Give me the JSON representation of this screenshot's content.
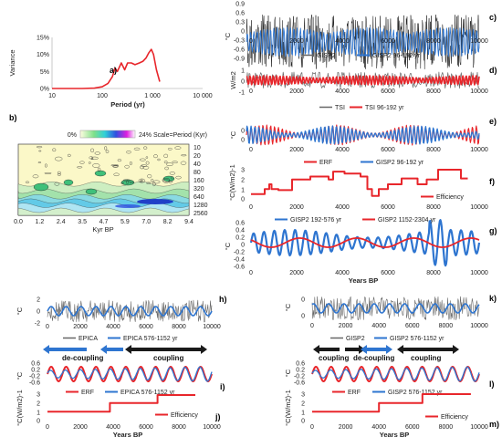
{
  "colors": {
    "black": "#1a1a1a",
    "gray": "#666666",
    "blue": "#2e75d0",
    "red": "#e8262b"
  },
  "chart_data": [
    {
      "id": "a",
      "type": "line",
      "panel_label": "a)",
      "ylabel": "Variance",
      "xlabel": "Period (yr)",
      "xscale": "log",
      "xticks": [
        "10",
        "100",
        "1 000",
        "10 000"
      ],
      "yticks": [
        "0%",
        "5%",
        "10%",
        "15%"
      ],
      "x": [
        10,
        40,
        70,
        100,
        130,
        160,
        180,
        200,
        240,
        280,
        320,
        380,
        450,
        550,
        650,
        750,
        850,
        950,
        1050,
        1200,
        1400
      ],
      "values": [
        0,
        0,
        0.1,
        0.5,
        1.5,
        3.5,
        6,
        5,
        7.5,
        5.5,
        7.5,
        7.5,
        7,
        7.5,
        8,
        9,
        10.5,
        11.5,
        10,
        5.5,
        2
      ]
    },
    {
      "id": "b",
      "type": "heatmap",
      "panel_label": "b)",
      "colorbar_min": "0%",
      "colorbar_max": "24%",
      "scale_note": "Scale=Period (Kyr)",
      "xlabel": "Kyr BP",
      "xticks": [
        "0.0",
        "1.2",
        "2.4",
        "3.5",
        "4.7",
        "5.9",
        "7.0",
        "8.2",
        "9.4"
      ],
      "yticks": [
        "10",
        "20",
        "40",
        "80",
        "160",
        "320",
        "640",
        "1280",
        "2560"
      ]
    },
    {
      "id": "c",
      "type": "line",
      "panel_label": "c)",
      "ylabel": "°C",
      "yticks": [
        "0.9",
        "0.6",
        "0.3",
        "0",
        "-0.3",
        "-0.6",
        "-0.9"
      ],
      "xticks": [
        "0",
        "2000",
        "4000",
        "6000",
        "8000",
        "10000"
      ],
      "series": [
        {
          "name": "GISP2"
        },
        {
          "name": "GISP2 96-192 yr"
        }
      ]
    },
    {
      "id": "d",
      "type": "line",
      "panel_label": "d)",
      "ylabel": "W/m2",
      "yticks": [
        "1",
        "0",
        "-1"
      ],
      "xticks": [
        "0",
        "2000",
        "4000",
        "6000",
        "8000",
        "10000"
      ],
      "series": [
        {
          "name": "TSI"
        },
        {
          "name": "TSI 96-192 yr"
        }
      ]
    },
    {
      "id": "e",
      "type": "line",
      "panel_label": "e)",
      "ylabel": "°C",
      "yticks": [
        "0",
        "0"
      ],
      "xticks": [
        "0",
        "2000",
        "4000",
        "6000",
        "8000",
        "10000"
      ],
      "series": [
        {
          "name": "ERF"
        },
        {
          "name": "GISP2 96-192 yr"
        }
      ]
    },
    {
      "id": "f",
      "type": "line",
      "panel_label": "f)",
      "ylabel": "°C(W/m2)-1",
      "yticks": [
        "3",
        "2",
        "1",
        "0"
      ],
      "xticks": [
        "0",
        "2000",
        "4000",
        "6000",
        "8000",
        "10000"
      ],
      "series": [
        {
          "name": "Efficiency",
          "x": [
            0,
            400,
            600,
            800,
            900,
            1200,
            1400,
            1800,
            2600,
            3400,
            3600,
            4100,
            4800,
            5100,
            5300,
            5600,
            6000,
            6600,
            7300,
            7700,
            8200,
            8700,
            9200,
            9500
          ],
          "values": [
            0.5,
            0.5,
            1.0,
            1.5,
            1.0,
            0.9,
            0.9,
            2.0,
            2.3,
            2.0,
            2.8,
            2.6,
            2.3,
            1.0,
            0.3,
            1.0,
            1.5,
            2.1,
            1.5,
            2.0,
            3.0,
            3.0,
            2.1,
            2.1
          ]
        }
      ]
    },
    {
      "id": "g",
      "type": "line",
      "panel_label": "g)",
      "ylabel": "°C",
      "xlabel": "Years BP",
      "yticks": [
        "0.6",
        "0.4",
        "0.2",
        "0",
        "-0.2",
        "-0.4",
        "-0.6"
      ],
      "xticks": [
        "0",
        "2000",
        "4000",
        "6000",
        "8000",
        "10000"
      ],
      "series": [
        {
          "name": "GISP2 192-576 yr"
        },
        {
          "name": "GISP2 1152-2304 yr"
        }
      ]
    },
    {
      "id": "h",
      "type": "line",
      "panel_label": "h)",
      "ylabel": "°C",
      "yticks": [
        "2",
        "0",
        "-2"
      ],
      "xticks": [
        "0",
        "2000",
        "4000",
        "6000",
        "8000",
        "10000"
      ],
      "series": [
        {
          "name": "EPICA"
        },
        {
          "name": "EPICA 576-1152 yr"
        }
      ]
    },
    {
      "id": "i",
      "type": "line",
      "panel_label": "i)",
      "ylabel": "°C",
      "yticks": [
        "0.6",
        "0.2",
        "-0.2",
        "-0.6"
      ],
      "xticks": [
        "0",
        "2000",
        "4000",
        "6000",
        "8000",
        "10000"
      ],
      "series": [
        {
          "name": "ERF"
        },
        {
          "name": "EPICA 576-1152 yr"
        }
      ],
      "annotations": [
        "de-coupling",
        "coupling"
      ]
    },
    {
      "id": "j",
      "type": "line",
      "panel_label": "j)",
      "ylabel": "°C(W/m2)-1",
      "xlabel": "Years BP",
      "yticks": [
        "3",
        "2",
        "1",
        "0"
      ],
      "xticks": [
        "0",
        "2000",
        "4000",
        "6000",
        "8000",
        "10000"
      ],
      "series": [
        {
          "name": "Efficiency",
          "x": [
            0,
            3800,
            3800,
            6700,
            6700,
            9000
          ],
          "values": [
            1.0,
            1.0,
            2.0,
            2.0,
            2.9,
            2.9
          ]
        }
      ]
    },
    {
      "id": "k",
      "type": "line",
      "panel_label": "k)",
      "ylabel": "°C",
      "yticks": [
        "0",
        "0"
      ],
      "xticks": [
        "0",
        "2000",
        "4000",
        "6000",
        "8000",
        "10000"
      ],
      "series": [
        {
          "name": "GISP2"
        },
        {
          "name": "GISP2 576-1152 yr"
        }
      ]
    },
    {
      "id": "l",
      "type": "line",
      "panel_label": "l)",
      "ylabel": "°C",
      "yticks": [
        "0.6",
        "0.2",
        "-0.2",
        "-0.6"
      ],
      "xticks": [
        "0",
        "2000",
        "4000",
        "6000",
        "8000",
        "10000"
      ],
      "series": [
        {
          "name": "ERF"
        },
        {
          "name": "GISP2 576-1152 yr"
        }
      ],
      "annotations": [
        "coupling",
        "de-coupling",
        "coupling"
      ]
    },
    {
      "id": "m",
      "type": "line",
      "panel_label": "m)",
      "ylabel": "°C(W/m2)-1",
      "xlabel": "Years BP",
      "yticks": [
        "3",
        "2",
        "1",
        "0"
      ],
      "xticks": [
        "0",
        "2000",
        "4000",
        "6000",
        "8000",
        "10000"
      ],
      "series": [
        {
          "name": "Efficiency",
          "x": [
            0,
            4000,
            4000,
            6600,
            6600,
            9500
          ],
          "values": [
            1.0,
            1.0,
            2.0,
            2.0,
            3.0,
            3.0
          ]
        }
      ]
    }
  ]
}
